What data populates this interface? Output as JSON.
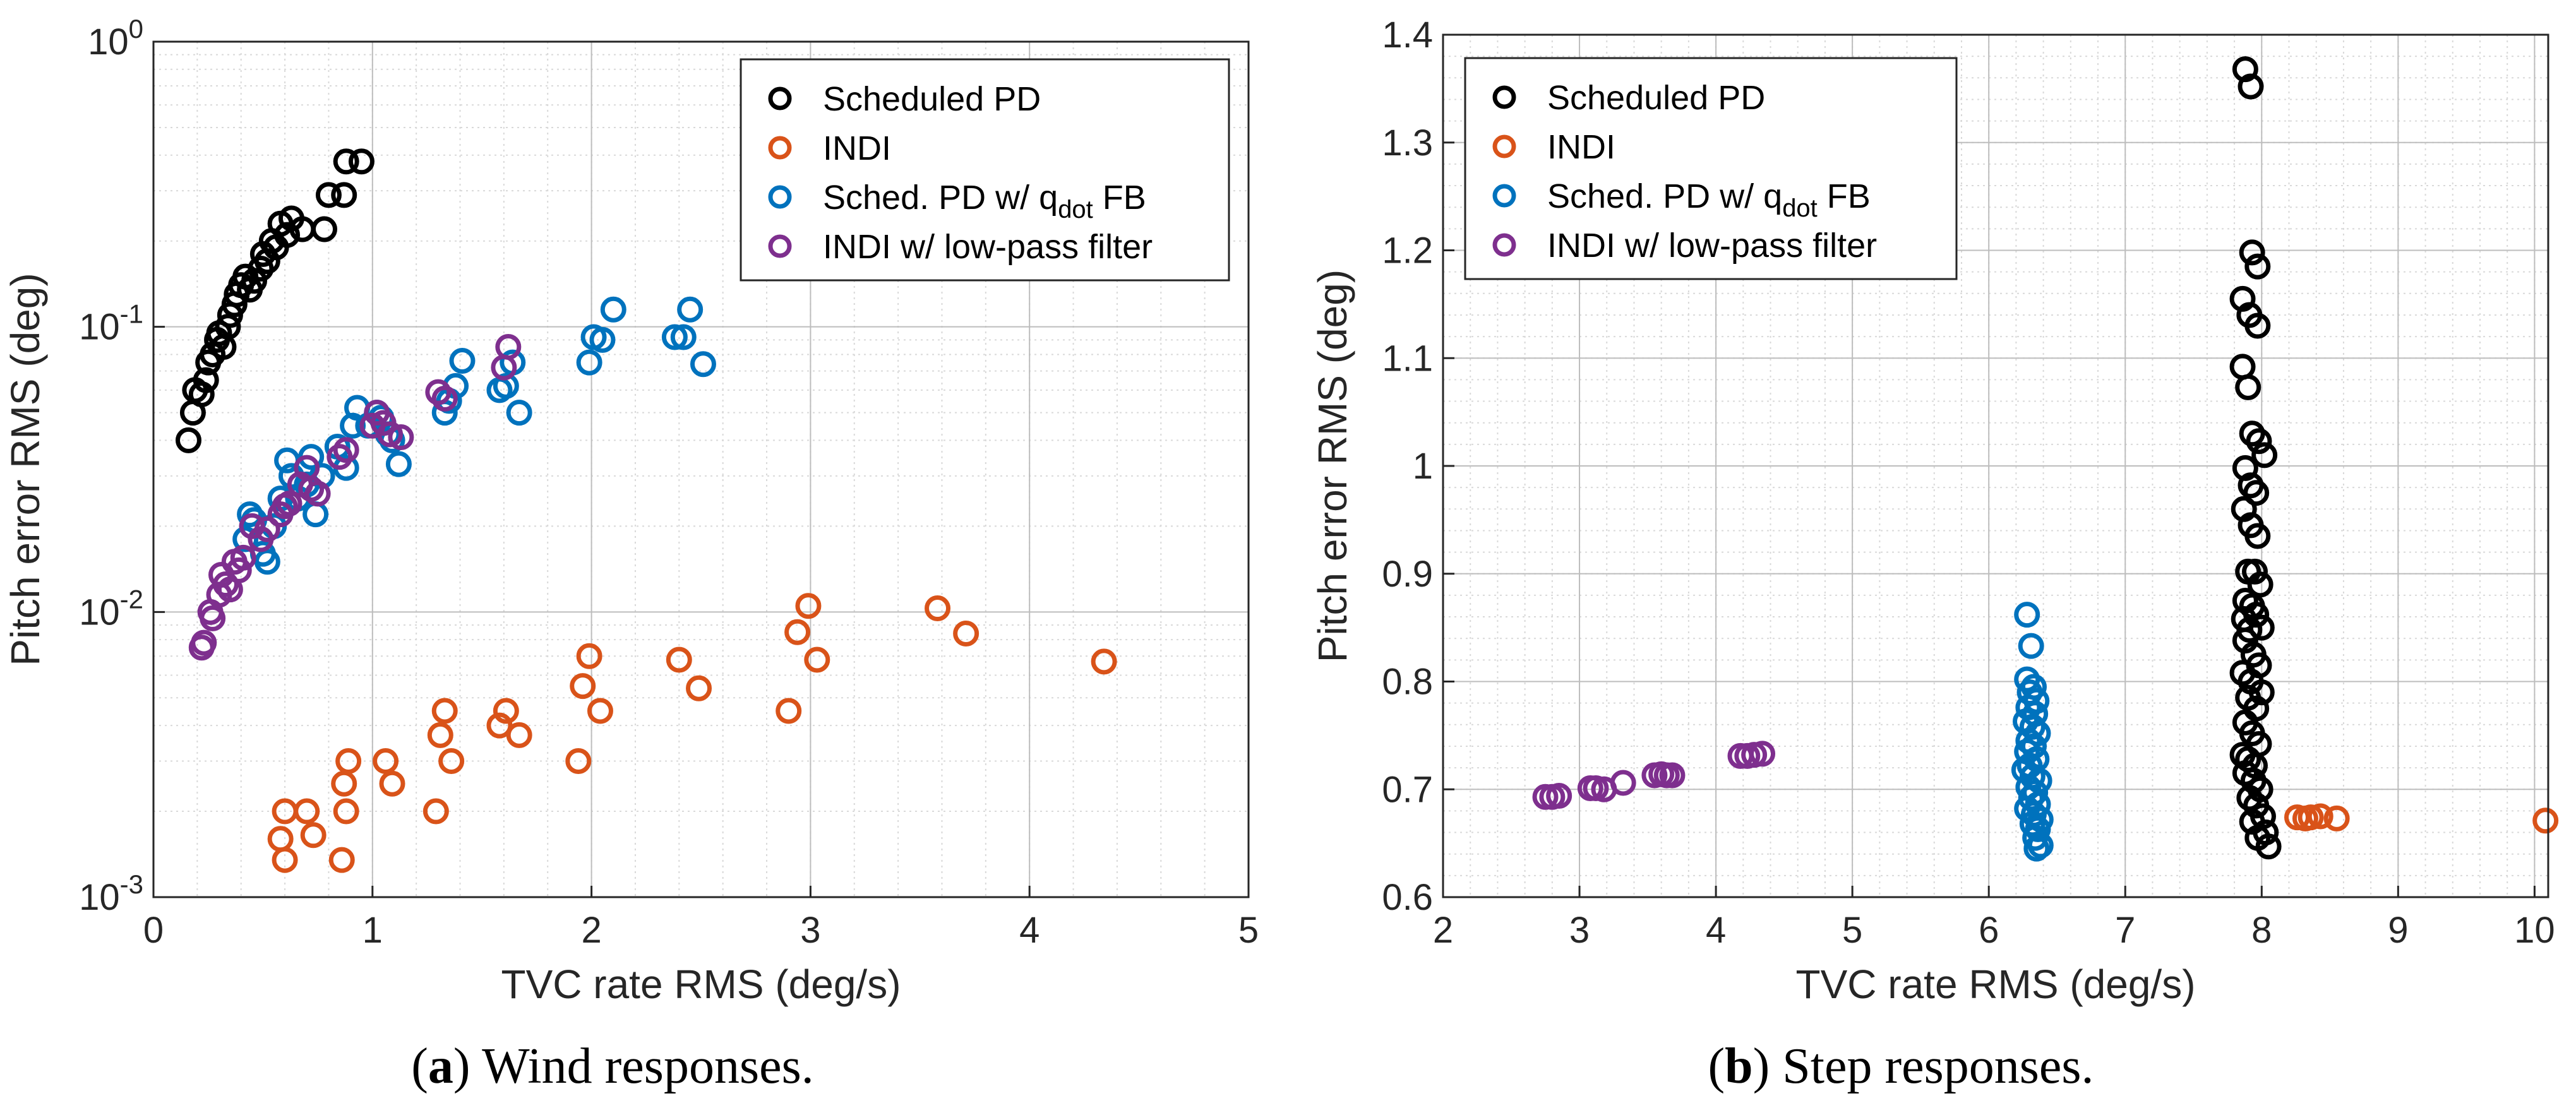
{
  "chart_data": [
    {
      "type": "scatter",
      "panel_label": "a",
      "caption": "Wind responses.",
      "xlabel": "TVC rate RMS (deg/s)",
      "ylabel": "Pitch error RMS (deg)",
      "xscale": "linear",
      "yscale": "log",
      "xlim": [
        0,
        5
      ],
      "ylim": [
        0.001,
        1
      ],
      "xticks": [
        "0",
        "1",
        "2",
        "3",
        "4",
        "5"
      ],
      "yticks": [
        {
          "base": "10",
          "exp": "0",
          "value": 1
        },
        {
          "base": "10",
          "exp": "-1",
          "value": 0.1
        },
        {
          "base": "10",
          "exp": "-2",
          "value": 0.01
        },
        {
          "base": "10",
          "exp": "-3",
          "value": 0.001
        }
      ],
      "grid": "major and minor",
      "legend_position": "top-right",
      "series": [
        {
          "name": "Scheduled PD",
          "color": "#000000",
          "points": [
            [
              0.16,
              0.04
            ],
            [
              0.18,
              0.05
            ],
            [
              0.19,
              0.06
            ],
            [
              0.22,
              0.058
            ],
            [
              0.24,
              0.065
            ],
            [
              0.25,
              0.075
            ],
            [
              0.27,
              0.08
            ],
            [
              0.29,
              0.09
            ],
            [
              0.3,
              0.095
            ],
            [
              0.32,
              0.085
            ],
            [
              0.34,
              0.1
            ],
            [
              0.35,
              0.11
            ],
            [
              0.37,
              0.12
            ],
            [
              0.38,
              0.13
            ],
            [
              0.4,
              0.14
            ],
            [
              0.42,
              0.15
            ],
            [
              0.44,
              0.135
            ],
            [
              0.46,
              0.145
            ],
            [
              0.49,
              0.16
            ],
            [
              0.5,
              0.18
            ],
            [
              0.52,
              0.17
            ],
            [
              0.54,
              0.2
            ],
            [
              0.56,
              0.19
            ],
            [
              0.58,
              0.23
            ],
            [
              0.61,
              0.21
            ],
            [
              0.63,
              0.24
            ],
            [
              0.68,
              0.22
            ],
            [
              0.78,
              0.22
            ],
            [
              0.8,
              0.29
            ],
            [
              0.87,
              0.29
            ],
            [
              0.88,
              0.38
            ],
            [
              0.95,
              0.38
            ]
          ]
        },
        {
          "name": "INDI",
          "color": "#D95319",
          "points": [
            [
              0.58,
              0.0016
            ],
            [
              0.6,
              0.002
            ],
            [
              0.6,
              0.00135
            ],
            [
              0.7,
              0.002
            ],
            [
              0.73,
              0.00165
            ],
            [
              0.86,
              0.00135
            ],
            [
              0.87,
              0.0025
            ],
            [
              0.88,
              0.002
            ],
            [
              0.89,
              0.003
            ],
            [
              1.06,
              0.003
            ],
            [
              1.09,
              0.0025
            ],
            [
              1.29,
              0.002
            ],
            [
              1.31,
              0.0037
            ],
            [
              1.33,
              0.0045
            ],
            [
              1.36,
              0.003
            ],
            [
              1.58,
              0.004
            ],
            [
              1.61,
              0.0045
            ],
            [
              1.67,
              0.0037
            ],
            [
              1.94,
              0.003
            ],
            [
              1.96,
              0.0055
            ],
            [
              1.99,
              0.007
            ],
            [
              2.04,
              0.0045
            ],
            [
              2.4,
              0.0068
            ],
            [
              2.49,
              0.0054
            ],
            [
              2.9,
              0.0045
            ],
            [
              2.94,
              0.0085
            ],
            [
              2.99,
              0.0105
            ],
            [
              3.03,
              0.0068
            ],
            [
              3.58,
              0.0103
            ],
            [
              3.71,
              0.0084
            ],
            [
              4.34,
              0.0067
            ]
          ]
        },
        {
          "name": "Sched. PD w/ q_dot FB",
          "color": "#0072BD",
          "points": [
            [
              0.42,
              0.018
            ],
            [
              0.44,
              0.022
            ],
            [
              0.46,
              0.021
            ],
            [
              0.5,
              0.016
            ],
            [
              0.52,
              0.015
            ],
            [
              0.55,
              0.02
            ],
            [
              0.58,
              0.025
            ],
            [
              0.61,
              0.034
            ],
            [
              0.63,
              0.03
            ],
            [
              0.66,
              0.025
            ],
            [
              0.7,
              0.028
            ],
            [
              0.72,
              0.035
            ],
            [
              0.74,
              0.022
            ],
            [
              0.77,
              0.03
            ],
            [
              0.84,
              0.038
            ],
            [
              0.88,
              0.032
            ],
            [
              0.91,
              0.045
            ],
            [
              0.93,
              0.052
            ],
            [
              0.98,
              0.045
            ],
            [
              1.02,
              0.05
            ],
            [
              1.04,
              0.048
            ],
            [
              1.07,
              0.042
            ],
            [
              1.09,
              0.04
            ],
            [
              1.12,
              0.033
            ],
            [
              1.33,
              0.05
            ],
            [
              1.35,
              0.055
            ],
            [
              1.38,
              0.062
            ],
            [
              1.41,
              0.076
            ],
            [
              1.58,
              0.06
            ],
            [
              1.61,
              0.062
            ],
            [
              1.64,
              0.075
            ],
            [
              1.67,
              0.05
            ],
            [
              1.99,
              0.075
            ],
            [
              2.01,
              0.092
            ],
            [
              2.05,
              0.09
            ],
            [
              2.1,
              0.115
            ],
            [
              2.38,
              0.092
            ],
            [
              2.42,
              0.092
            ],
            [
              2.45,
              0.115
            ],
            [
              2.51,
              0.074
            ]
          ]
        },
        {
          "name": "INDI w/ low-pass filter",
          "color": "#7E2F8E",
          "points": [
            [
              0.22,
              0.0075
            ],
            [
              0.23,
              0.0078
            ],
            [
              0.26,
              0.01
            ],
            [
              0.27,
              0.0095
            ],
            [
              0.3,
              0.0115
            ],
            [
              0.31,
              0.0135
            ],
            [
              0.33,
              0.0125
            ],
            [
              0.35,
              0.012
            ],
            [
              0.37,
              0.015
            ],
            [
              0.39,
              0.014
            ],
            [
              0.41,
              0.0155
            ],
            [
              0.45,
              0.02
            ],
            [
              0.49,
              0.018
            ],
            [
              0.52,
              0.0195
            ],
            [
              0.58,
              0.022
            ],
            [
              0.6,
              0.0235
            ],
            [
              0.62,
              0.024
            ],
            [
              0.67,
              0.028
            ],
            [
              0.7,
              0.032
            ],
            [
              0.72,
              0.027
            ],
            [
              0.75,
              0.026
            ],
            [
              0.85,
              0.035
            ],
            [
              0.88,
              0.037
            ],
            [
              1.0,
              0.045
            ],
            [
              1.02,
              0.05
            ],
            [
              1.05,
              0.046
            ],
            [
              1.08,
              0.042
            ],
            [
              1.13,
              0.041
            ],
            [
              1.3,
              0.059
            ],
            [
              1.33,
              0.056
            ],
            [
              1.6,
              0.072
            ],
            [
              1.62,
              0.085
            ]
          ]
        }
      ]
    },
    {
      "type": "scatter",
      "panel_label": "b",
      "caption": "Step responses.",
      "xlabel": "TVC rate RMS (deg/s)",
      "ylabel": "Pitch error RMS (deg)",
      "xscale": "linear",
      "yscale": "linear",
      "xlim": [
        2,
        10.1
      ],
      "ylim": [
        0.6,
        1.4
      ],
      "xticks": [
        "2",
        "3",
        "4",
        "5",
        "6",
        "7",
        "8",
        "9",
        "10"
      ],
      "yticks": [
        "0.6",
        "0.7",
        "0.8",
        "0.9",
        "1",
        "1.1",
        "1.2",
        "1.3",
        "1.4"
      ],
      "grid": "major and minor",
      "legend_position": "top-left",
      "series": [
        {
          "name": "Scheduled PD",
          "color": "#000000",
          "points": [
            [
              7.88,
              1.368
            ],
            [
              7.92,
              1.352
            ],
            [
              7.93,
              1.198
            ],
            [
              7.97,
              1.185
            ],
            [
              7.86,
              1.155
            ],
            [
              7.91,
              1.14
            ],
            [
              7.97,
              1.13
            ],
            [
              7.86,
              1.092
            ],
            [
              7.9,
              1.073
            ],
            [
              7.93,
              1.03
            ],
            [
              7.98,
              1.023
            ],
            [
              8.02,
              1.01
            ],
            [
              7.88,
              0.998
            ],
            [
              7.92,
              0.982
            ],
            [
              7.96,
              0.975
            ],
            [
              7.87,
              0.96
            ],
            [
              7.92,
              0.945
            ],
            [
              7.97,
              0.935
            ],
            [
              7.9,
              0.902
            ],
            [
              7.95,
              0.902
            ],
            [
              7.99,
              0.89
            ],
            [
              7.88,
              0.875
            ],
            [
              7.93,
              0.87
            ],
            [
              7.96,
              0.862
            ],
            [
              7.87,
              0.858
            ],
            [
              7.91,
              0.848
            ],
            [
              8.0,
              0.85
            ],
            [
              7.88,
              0.838
            ],
            [
              7.94,
              0.825
            ],
            [
              7.98,
              0.815
            ],
            [
              7.86,
              0.808
            ],
            [
              7.92,
              0.8
            ],
            [
              8.0,
              0.79
            ],
            [
              7.9,
              0.785
            ],
            [
              7.96,
              0.775
            ],
            [
              7.88,
              0.762
            ],
            [
              7.93,
              0.752
            ],
            [
              7.98,
              0.742
            ],
            [
              7.86,
              0.732
            ],
            [
              7.9,
              0.728
            ],
            [
              7.95,
              0.722
            ],
            [
              7.88,
              0.715
            ],
            [
              7.94,
              0.708
            ],
            [
              7.99,
              0.7
            ],
            [
              7.91,
              0.692
            ],
            [
              7.96,
              0.685
            ],
            [
              8.01,
              0.675
            ],
            [
              7.93,
              0.67
            ],
            [
              8.03,
              0.66
            ],
            [
              7.97,
              0.655
            ],
            [
              8.05,
              0.647
            ]
          ]
        },
        {
          "name": "INDI",
          "color": "#D95319",
          "points": [
            [
              8.26,
              0.674
            ],
            [
              8.32,
              0.673
            ],
            [
              8.36,
              0.674
            ],
            [
              8.43,
              0.675
            ],
            [
              8.55,
              0.673
            ],
            [
              10.08,
              0.671
            ]
          ]
        },
        {
          "name": "Sched. PD w/ q_dot FB",
          "color": "#0072BD",
          "points": [
            [
              6.28,
              0.862
            ],
            [
              6.31,
              0.833
            ],
            [
              6.28,
              0.802
            ],
            [
              6.33,
              0.795
            ],
            [
              6.3,
              0.79
            ],
            [
              6.35,
              0.782
            ],
            [
              6.29,
              0.776
            ],
            [
              6.34,
              0.77
            ],
            [
              6.27,
              0.763
            ],
            [
              6.32,
              0.758
            ],
            [
              6.36,
              0.752
            ],
            [
              6.29,
              0.745
            ],
            [
              6.33,
              0.74
            ],
            [
              6.28,
              0.735
            ],
            [
              6.35,
              0.728
            ],
            [
              6.3,
              0.722
            ],
            [
              6.26,
              0.718
            ],
            [
              6.32,
              0.712
            ],
            [
              6.37,
              0.708
            ],
            [
              6.29,
              0.702
            ],
            [
              6.34,
              0.697
            ],
            [
              6.31,
              0.692
            ],
            [
              6.36,
              0.686
            ],
            [
              6.28,
              0.682
            ],
            [
              6.33,
              0.677
            ],
            [
              6.38,
              0.672
            ],
            [
              6.32,
              0.668
            ],
            [
              6.36,
              0.663
            ],
            [
              6.34,
              0.655
            ],
            [
              6.38,
              0.648
            ],
            [
              6.35,
              0.645
            ]
          ]
        },
        {
          "name": "INDI w/ low-pass filter",
          "color": "#7E2F8E",
          "points": [
            [
              2.75,
              0.693
            ],
            [
              2.8,
              0.693
            ],
            [
              2.85,
              0.694
            ],
            [
              3.08,
              0.701
            ],
            [
              3.12,
              0.701
            ],
            [
              3.18,
              0.7
            ],
            [
              3.32,
              0.706
            ],
            [
              3.55,
              0.713
            ],
            [
              3.6,
              0.714
            ],
            [
              3.64,
              0.713
            ],
            [
              3.68,
              0.713
            ],
            [
              4.18,
              0.731
            ],
            [
              4.23,
              0.731
            ],
            [
              4.28,
              0.732
            ],
            [
              4.34,
              0.733
            ]
          ]
        }
      ]
    }
  ]
}
